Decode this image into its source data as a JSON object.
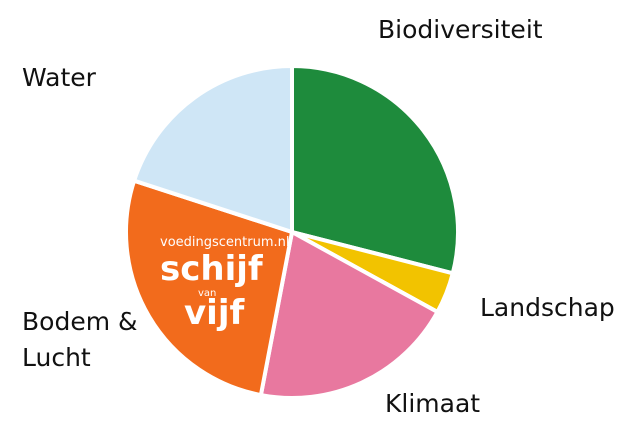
{
  "chart_data": {
    "type": "pie",
    "categories": [
      "Biodiversiteit",
      "Landschap",
      "Klimaat",
      "Bodem & Lucht",
      "Water"
    ],
    "values": [
      29,
      4,
      20,
      27,
      20
    ],
    "colors": [
      "#1e8b3c",
      "#f2c300",
      "#e8789f",
      "#f26b1c",
      "#cfe6f6"
    ],
    "annotations": [
      "voedingscentrum.nl",
      "schijf",
      "van",
      "vijf"
    ]
  }
}
